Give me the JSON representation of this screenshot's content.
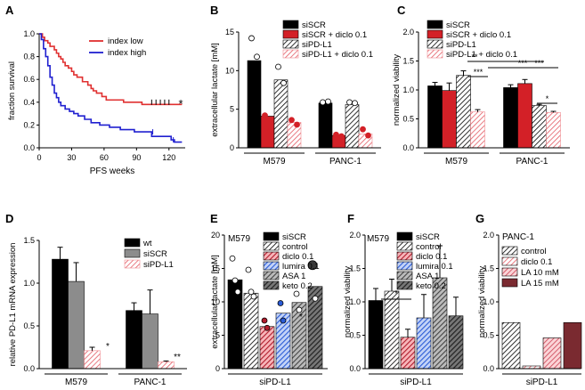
{
  "colors": {
    "black": "#000000",
    "red": "#d32027",
    "gray": "#8c8c8c",
    "pink": "#f08a90",
    "darkred": "#b01c2c",
    "blue": "#2a5bd6",
    "km_low": "#e03030",
    "km_high": "#2020d0",
    "light": "#cfcfcf",
    "dark": "#3a3a3a",
    "maroon": "#7a2a30",
    "lightpink": "#f4a0a8"
  },
  "chart_data": [
    {
      "panel": "A",
      "type": "line",
      "xlabel": "PFS weeks",
      "ylabel": "fraction survival",
      "xlim": [
        0,
        135
      ],
      "ylim": [
        0,
        1.0
      ],
      "xticks": [
        "0",
        "30",
        "60",
        "90",
        "120"
      ],
      "yticks": [
        "0.0",
        "0.2",
        "0.4",
        "0.6",
        "0.8",
        "1.0"
      ],
      "annotation": "*",
      "series": [
        {
          "name": "index low",
          "color": "km_low",
          "x": [
            0,
            3,
            5,
            8,
            10,
            14,
            16,
            18,
            20,
            22,
            24,
            27,
            30,
            32,
            35,
            40,
            45,
            48,
            50,
            53,
            58,
            62,
            70,
            78,
            88,
            95,
            132
          ],
          "y": [
            1,
            0.97,
            0.94,
            0.92,
            0.89,
            0.86,
            0.83,
            0.8,
            0.78,
            0.75,
            0.72,
            0.7,
            0.67,
            0.64,
            0.62,
            0.58,
            0.55,
            0.52,
            0.5,
            0.48,
            0.45,
            0.42,
            0.42,
            0.4,
            0.4,
            0.38,
            0.38
          ]
        },
        {
          "name": "index high",
          "color": "km_high",
          "x": [
            0,
            2,
            4,
            6,
            8,
            10,
            12,
            14,
            16,
            18,
            20,
            24,
            28,
            32,
            36,
            42,
            48,
            56,
            65,
            75,
            88,
            100,
            104,
            108,
            122,
            125,
            132
          ],
          "y": [
            1,
            0.95,
            0.87,
            0.8,
            0.72,
            0.62,
            0.55,
            0.48,
            0.44,
            0.4,
            0.37,
            0.34,
            0.32,
            0.3,
            0.28,
            0.25,
            0.22,
            0.2,
            0.18,
            0.16,
            0.14,
            0.14,
            0.1,
            0.1,
            0.07,
            0.05,
            0.05
          ]
        }
      ]
    },
    {
      "panel": "B",
      "type": "bar",
      "ylabel": "extracellular lactate [mM]",
      "ylim": [
        0,
        15
      ],
      "yticks": [
        "0",
        "5",
        "10",
        "15"
      ],
      "groups": [
        "M579",
        "PANC-1"
      ],
      "series": [
        {
          "name": "siSCR",
          "fill": "black",
          "values": [
            11.3,
            5.8
          ],
          "points": [
            [
              14.2,
              11.8
            ],
            [
              5.9,
              6.0
            ]
          ]
        },
        {
          "name": "siSCR + diclo 0.1",
          "fill": "red",
          "values": [
            4.1,
            1.6
          ],
          "points": [
            [
              4.2,
              2.2
            ],
            [
              1.7,
              1.5
            ]
          ]
        },
        {
          "name": "siPD-L1",
          "fill": "hatch",
          "values": [
            8.8,
            5.6
          ],
          "points": [
            [
              10.5,
              8.4
            ],
            [
              5.9,
              5.8
            ]
          ]
        },
        {
          "name": "siPD-L1 + diclo 0.1",
          "fill": "pinkhatch",
          "values": [
            3.3,
            1.8
          ],
          "points": [
            [
              3.6,
              3.0
            ],
            [
              2.4,
              1.6
            ]
          ]
        }
      ]
    },
    {
      "panel": "C",
      "type": "bar",
      "ylabel": "normalized viability",
      "ylim": [
        0,
        2.0
      ],
      "yticks": [
        "0.0",
        "0.5",
        "1.0",
        "1.5",
        "2.0"
      ],
      "groups": [
        "M579",
        "PANC-1"
      ],
      "series": [
        {
          "name": "siSCR",
          "fill": "black",
          "values": [
            1.07,
            1.04
          ],
          "err": [
            0.06,
            0.05
          ]
        },
        {
          "name": "siSCR + diclo 0.1",
          "fill": "red",
          "values": [
            0.99,
            1.11
          ],
          "err": [
            0.13,
            0.07
          ]
        },
        {
          "name": "siPD-L1",
          "fill": "hatch",
          "values": [
            1.25,
            0.73
          ],
          "err": [
            0.08,
            0.02
          ]
        },
        {
          "name": "siPD-L1 + diclo 0.1",
          "fill": "pinkhatch",
          "values": [
            0.62,
            0.61
          ],
          "err": [
            0.04,
            0.02
          ]
        }
      ],
      "significance": [
        "**",
        "***",
        "***",
        "***",
        "*"
      ]
    },
    {
      "panel": "D",
      "type": "bar",
      "ylabel": "relative PD-L1 mRNA expression",
      "ylim": [
        0,
        1.5
      ],
      "yticks": [
        "0.0",
        "0.5",
        "1.0",
        "1.5"
      ],
      "groups": [
        "M579",
        "PANC-1"
      ],
      "series": [
        {
          "name": "wt",
          "fill": "black",
          "values": [
            1.28,
            0.68
          ],
          "err": [
            0.14,
            0.09
          ]
        },
        {
          "name": "siSCR",
          "fill": "gray",
          "values": [
            1.02,
            0.64
          ],
          "err": [
            0.22,
            0.28
          ]
        },
        {
          "name": "siPD-L1",
          "fill": "pinkhatch",
          "values": [
            0.21,
            0.08
          ],
          "err": [
            0.04,
            0.01
          ]
        }
      ],
      "significance": [
        "*",
        "**"
      ]
    },
    {
      "panel": "E",
      "type": "bar",
      "title": "M579",
      "ylabel": "extracellular lactate [mM]",
      "ylim": [
        0,
        20
      ],
      "yticks": [
        "0",
        "5",
        "10",
        "15",
        "20"
      ],
      "xlabel": "siPD-L1",
      "series": [
        {
          "name": "siSCR",
          "fill": "black",
          "value": 13.3,
          "points": [
            16.5,
            13.2,
            11.5
          ]
        },
        {
          "name": "control",
          "fill": "hatch",
          "value": 11.3,
          "points": [
            14.8,
            11.5,
            10.8
          ]
        },
        {
          "name": "diclo 0.1",
          "fill": "redhatch",
          "value": 6.3,
          "points": [
            7.2,
            6.1
          ]
        },
        {
          "name": "lumira 0.1",
          "fill": "bluehatch",
          "value": 8.3,
          "points": [
            9.8,
            7.2
          ]
        },
        {
          "name": "ASA 1",
          "fill": "darkhatch",
          "value": 9.9,
          "points": [
            11.2,
            8.8
          ]
        },
        {
          "name": "keto 0.2",
          "fill": "darkhatch2",
          "value": 12.3,
          "points": [
            15.5,
            10.5
          ]
        }
      ],
      "significance": [
        "*"
      ]
    },
    {
      "panel": "F",
      "type": "bar",
      "title": "M579",
      "ylabel": "normalized viability",
      "ylim": [
        0,
        2.0
      ],
      "yticks": [
        "0.0",
        "0.5",
        "1.0",
        "1.5",
        "2.0"
      ],
      "xlabel": "siPD-L1",
      "series": [
        {
          "name": "siSCR",
          "fill": "black",
          "value": 1.02,
          "err": 0.18
        },
        {
          "name": "control",
          "fill": "hatch",
          "value": 1.16,
          "err": 0.18
        },
        {
          "name": "diclo 0.1",
          "fill": "redhatch",
          "value": 0.47,
          "err": 0.12
        },
        {
          "name": "lumira 0.1",
          "fill": "bluehatch",
          "value": 0.76,
          "err": 0.35
        },
        {
          "name": "ASA 1",
          "fill": "darkhatch",
          "value": 1.36,
          "err": 0.48
        },
        {
          "name": "keto 0.2",
          "fill": "darkhatch2",
          "value": 0.79,
          "err": 0.28
        }
      ],
      "significance": [
        "*"
      ]
    },
    {
      "panel": "G",
      "type": "bar",
      "title": "PANC-1",
      "ylabel": "normalized viability",
      "ylim": [
        0,
        2.0
      ],
      "yticks": [
        "0.0",
        "0.5",
        "1.0",
        "1.5",
        "2.0"
      ],
      "xlabel": "siPD-L1",
      "series": [
        {
          "name": "control",
          "fill": "hatch",
          "value": 0.69
        },
        {
          "name": "diclo 0.1",
          "fill": "pinkhatch",
          "value": 0.04
        },
        {
          "name": "LA 10 mM",
          "fill": "lightpinkhatch",
          "value": 0.46
        },
        {
          "name": "LA 15 mM",
          "fill": "maroon",
          "value": 0.69
        }
      ]
    }
  ]
}
